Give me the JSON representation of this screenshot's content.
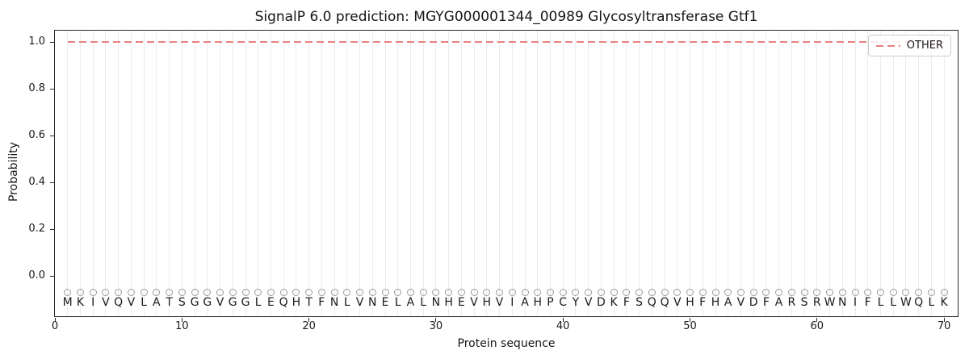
{
  "chart_data": {
    "type": "line",
    "title": "SignalP 6.0 prediction: MGYG000001344_00989 Glycosyltransferase Gtf1",
    "xlabel": "Protein sequence",
    "ylabel": "Probability",
    "xlim": [
      0,
      71.2
    ],
    "ylim": [
      -0.18,
      1.05
    ],
    "x_ticks": [
      0,
      10,
      20,
      30,
      40,
      50,
      60,
      70
    ],
    "y_ticks": [
      0.0,
      0.2,
      0.4,
      0.6,
      0.8,
      1.0
    ],
    "grid": "light vertical gridline at every residue position",
    "legend_position": "upper right",
    "series": [
      {
        "name": "OTHER",
        "style": "dashed",
        "color": "#e98080",
        "x_start": 1,
        "x_end": 70,
        "y_constant": 1.0
      }
    ],
    "sequence": "MKIVQVLATSGGVGGLEQHTFNLVNELALNHEVHVIAHPCYVDKFSQQVHFHAVDFARSRWNIFLLWQLK",
    "per_residue_predicted_label": "O"
  },
  "colors": {
    "other_line": "#e98080",
    "gridline": "#ececec",
    "residue_marker": "#9b9b9b",
    "text": "#1a1a1a",
    "legend_border": "#cccccc"
  }
}
